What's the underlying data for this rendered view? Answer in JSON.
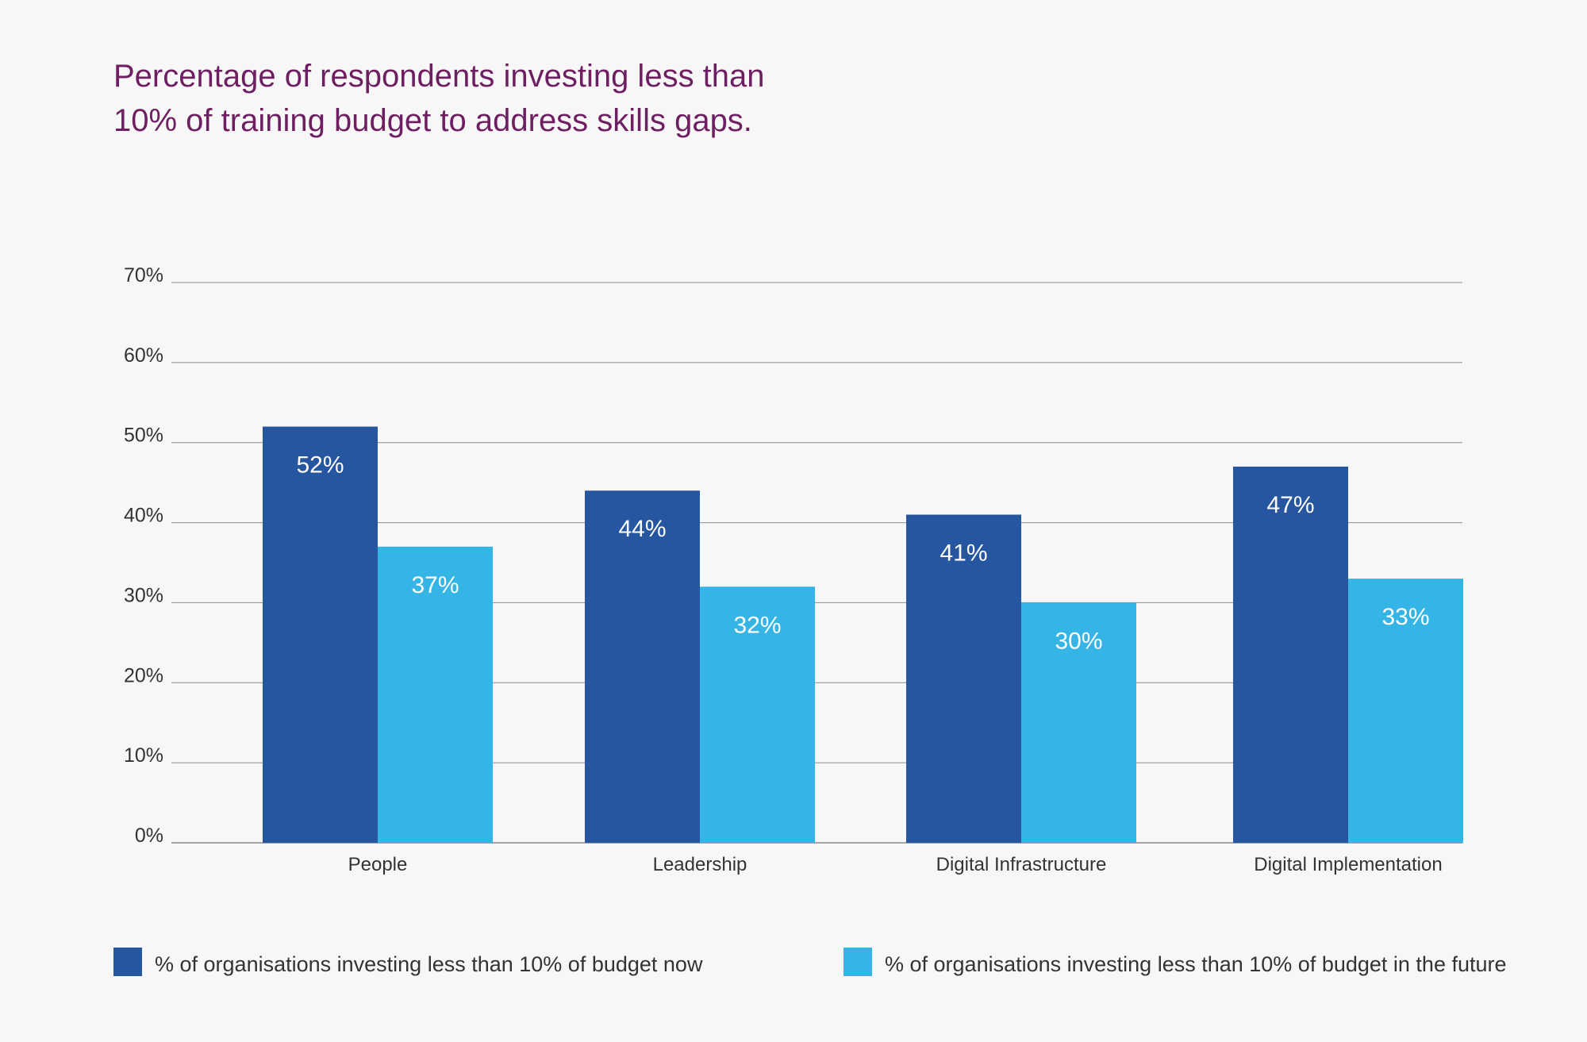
{
  "title_lines": [
    "Percentage of respondents investing less than",
    "10% of training budget to address skills gaps."
  ],
  "colors": {
    "title": "#6e1f62",
    "series_now": "#2756a0",
    "series_future": "#35b5e6",
    "grid": "#8c8c8c",
    "tick_text": "#333333",
    "bar_label": "#ffffff"
  },
  "chart_data": {
    "type": "bar",
    "title": "Percentage of respondents investing less than 10% of training budget to address skills gaps.",
    "xlabel": "",
    "ylabel": "",
    "categories": [
      "People",
      "Leadership",
      "Digital Infrastructure",
      "Digital Implementation"
    ],
    "series": [
      {
        "name": "% of organisations investing less than 10% of budget now",
        "values": [
          52,
          44,
          41,
          47
        ],
        "labels": [
          "52%",
          "44%",
          "41%",
          "47%"
        ]
      },
      {
        "name": "% of organisations investing less than 10% of budget in the future",
        "values": [
          37,
          32,
          30,
          33
        ],
        "labels": [
          "37%",
          "32%",
          "30%",
          "33%"
        ]
      }
    ],
    "ylim": [
      0,
      70
    ],
    "yticks": [
      0,
      10,
      20,
      30,
      40,
      50,
      60,
      70
    ],
    "ytick_labels": [
      "0%",
      "10%",
      "20%",
      "30%",
      "40%",
      "50%",
      "60%",
      "70%"
    ],
    "grid": true,
    "legend_position": "bottom"
  },
  "legend": [
    {
      "label": "% of organisations investing less than 10% of budget now"
    },
    {
      "label": "% of organisations investing less than 10% of budget in the future"
    }
  ]
}
